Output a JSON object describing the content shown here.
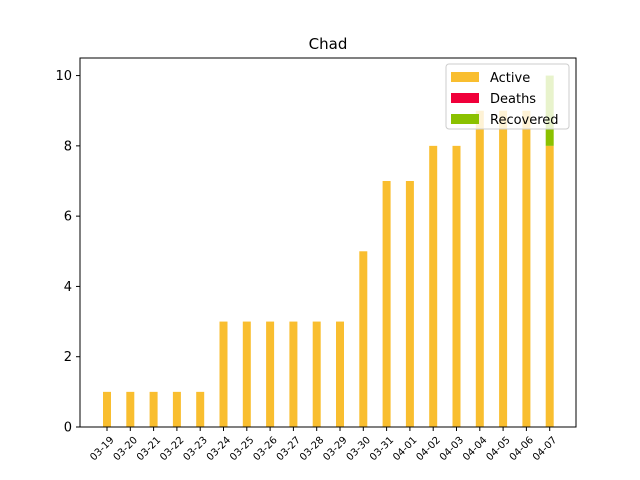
{
  "chart_data": {
    "type": "bar",
    "title": "Chad",
    "xlabel": "",
    "ylabel": "",
    "ylim": [
      0,
      10.5
    ],
    "yticks": [
      0,
      2,
      4,
      6,
      8,
      10
    ],
    "categories": [
      "03-19",
      "03-20",
      "03-21",
      "03-22",
      "03-23",
      "03-24",
      "03-25",
      "03-26",
      "03-27",
      "03-28",
      "03-29",
      "03-30",
      "03-31",
      "04-01",
      "04-02",
      "04-03",
      "04-04",
      "04-05",
      "04-06",
      "04-07"
    ],
    "stacked": true,
    "series": [
      {
        "name": "Active",
        "color": "#f9be2f",
        "values": [
          1,
          1,
          1,
          1,
          1,
          3,
          3,
          3,
          3,
          3,
          3,
          5,
          7,
          7,
          8,
          8,
          9,
          9,
          9,
          8
        ]
      },
      {
        "name": "Deaths",
        "color": "#f0003a",
        "values": [
          0,
          0,
          0,
          0,
          0,
          0,
          0,
          0,
          0,
          0,
          0,
          0,
          0,
          0,
          0,
          0,
          0,
          0,
          0,
          0
        ]
      },
      {
        "name": "Recovered",
        "color": "#8bc100",
        "values": [
          0,
          0,
          0,
          0,
          0,
          0,
          0,
          0,
          0,
          0,
          0,
          0,
          0,
          0,
          0,
          0,
          0,
          0,
          0,
          2
        ]
      }
    ],
    "legend": {
      "position": "top-right",
      "entries": [
        "Active",
        "Deaths",
        "Recovered"
      ]
    },
    "grid": false
  }
}
